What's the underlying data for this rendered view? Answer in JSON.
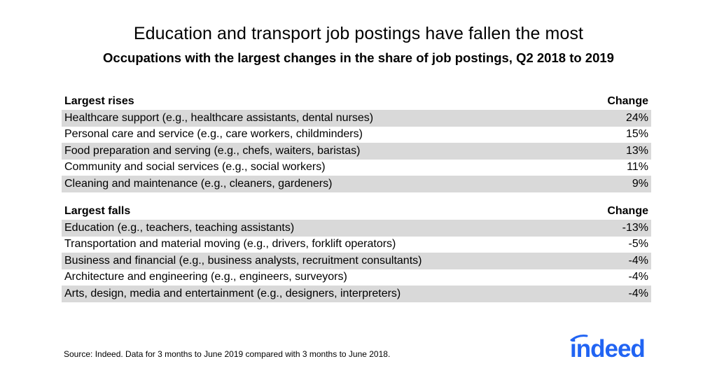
{
  "title": "Education and transport job postings have fallen the most",
  "subtitle": "Occupations with the largest changes in the share of job postings, Q2 2018 to 2019",
  "source": "Source: Indeed. Data for 3 months to June 2019 compared with 3 months to June 2018.",
  "logo": {
    "text": "indeed",
    "color": "#2164f3"
  },
  "colors": {
    "row_shade": "#d9d9d9"
  },
  "chart_data": {
    "type": "table",
    "tables": [
      {
        "header": "Largest rises",
        "value_header": "Change",
        "rows": [
          {
            "label": "Healthcare support (e.g., healthcare assistants, dental nurses)",
            "value": "24%"
          },
          {
            "label": "Personal care and service (e.g., care workers, childminders)",
            "value": "15%"
          },
          {
            "label": "Food preparation and serving (e.g., chefs, waiters, baristas)",
            "value": "13%"
          },
          {
            "label": "Community and social services (e.g., social workers)",
            "value": "11%"
          },
          {
            "label": "Cleaning and maintenance (e.g., cleaners, gardeners)",
            "value": "9%"
          }
        ]
      },
      {
        "header": "Largest falls",
        "value_header": "Change",
        "rows": [
          {
            "label": "Education (e.g., teachers, teaching assistants)",
            "value": "-13%"
          },
          {
            "label": "Transportation and material moving (e.g., drivers, forklift operators)",
            "value": "-5%"
          },
          {
            "label": "Business and financial (e.g., business analysts, recruitment consultants)",
            "value": "-4%"
          },
          {
            "label": "Architecture and engineering (e.g., engineers, surveyors)",
            "value": "-4%"
          },
          {
            "label": "Arts, design, media and entertainment (e.g., designers, interpreters)",
            "value": "-4%"
          }
        ]
      }
    ]
  }
}
